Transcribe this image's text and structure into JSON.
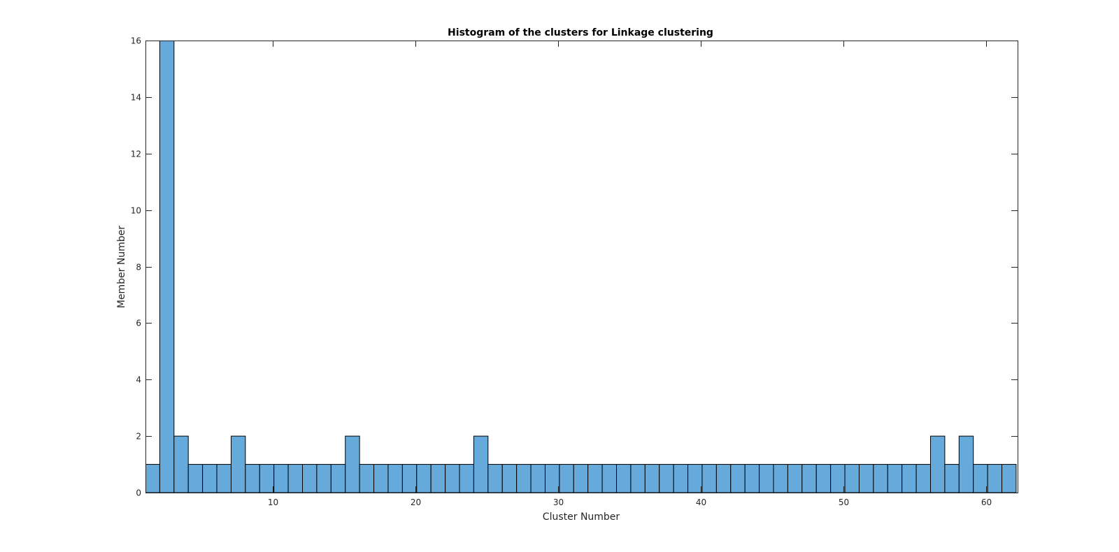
{
  "chart_data": {
    "type": "bar",
    "title": "Histogram of the clusters for Linkage clustering",
    "xlabel": "Cluster Number",
    "ylabel": "Member Number",
    "bar_color": "#66aadb",
    "edge_color": "#000000",
    "xlim": [
      1.1,
      62.2
    ],
    "ylim": [
      0,
      16
    ],
    "x": [
      1.6,
      2.6,
      3.6,
      4.6,
      5.6,
      6.6,
      7.6,
      8.6,
      9.6,
      10.6,
      11.6,
      12.6,
      13.6,
      14.6,
      15.6,
      16.6,
      17.6,
      18.6,
      19.6,
      20.6,
      21.6,
      22.6,
      23.6,
      24.6,
      25.6,
      26.6,
      27.6,
      28.6,
      29.6,
      30.6,
      31.6,
      32.6,
      33.6,
      34.6,
      35.6,
      36.6,
      37.6,
      38.6,
      39.6,
      40.6,
      41.6,
      42.6,
      43.6,
      44.6,
      45.6,
      46.6,
      47.6,
      48.6,
      49.6,
      50.6,
      51.6,
      52.6,
      53.6,
      54.6,
      55.6,
      56.6,
      57.6,
      58.6,
      59.6,
      60.6,
      61.6
    ],
    "values": [
      1,
      17,
      2,
      1,
      1,
      1,
      2,
      1,
      1,
      1,
      1,
      1,
      1,
      1,
      2,
      1,
      1,
      1,
      1,
      1,
      1,
      1,
      1,
      2,
      1,
      1,
      1,
      1,
      1,
      1,
      1,
      1,
      1,
      1,
      1,
      1,
      1,
      1,
      1,
      1,
      1,
      1,
      1,
      1,
      1,
      1,
      1,
      1,
      1,
      1,
      1,
      1,
      1,
      1,
      1,
      2,
      1,
      2,
      1,
      1,
      1
    ],
    "bin_width": 1,
    "x_ticks": [
      10,
      20,
      30,
      40,
      50,
      60
    ],
    "x_tick_labels": [
      "10",
      "20",
      "30",
      "40",
      "50",
      "60"
    ],
    "y_ticks": [
      0,
      2,
      4,
      6,
      8,
      10,
      12,
      14,
      16
    ],
    "y_tick_labels": [
      "0",
      "2",
      "4",
      "6",
      "8",
      "10",
      "12",
      "14",
      "16"
    ],
    "grid": false
  }
}
